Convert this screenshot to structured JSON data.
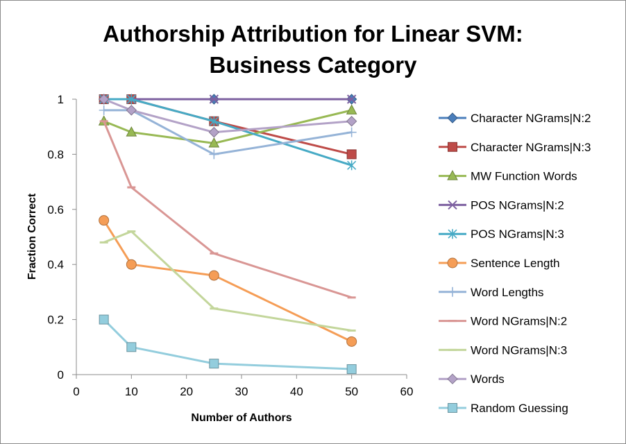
{
  "chart_data": {
    "type": "line",
    "title": "Authorship Attribution for Linear SVM:",
    "subtitle": "Business Category",
    "xlabel": "Number of Authors",
    "ylabel": "Fraction Correct",
    "xlim": [
      0,
      60
    ],
    "ylim": [
      0,
      1
    ],
    "x_ticks": [
      "0",
      "10",
      "20",
      "30",
      "40",
      "50",
      "60"
    ],
    "y_ticks": [
      "0",
      "0.2",
      "0.4",
      "0.6",
      "0.8",
      "1"
    ],
    "x": [
      5,
      10,
      25,
      50
    ],
    "grid": false,
    "legend_position": "right",
    "series": [
      {
        "name": "Character NGrams|N:2",
        "values": [
          1.0,
          1.0,
          1.0,
          1.0
        ],
        "color": "#4a7ebb",
        "marker": "diamond"
      },
      {
        "name": "Character NGrams|N:3",
        "values": [
          1.0,
          1.0,
          0.92,
          0.8
        ],
        "color": "#be4b48",
        "marker": "square"
      },
      {
        "name": "MW Function Words",
        "values": [
          0.92,
          0.88,
          0.84,
          0.96
        ],
        "color": "#98b954",
        "marker": "triangle"
      },
      {
        "name": "POS NGrams|N:2",
        "values": [
          1.0,
          1.0,
          1.0,
          1.0
        ],
        "color": "#7d60a0",
        "marker": "x"
      },
      {
        "name": "POS NGrams|N:3",
        "values": [
          1.0,
          1.0,
          0.92,
          0.76
        ],
        "color": "#46aac5",
        "marker": "star"
      },
      {
        "name": "Sentence Length",
        "values": [
          0.56,
          0.4,
          0.36,
          0.12
        ],
        "color": "#f59d56",
        "marker": "circle"
      },
      {
        "name": "Word Lengths",
        "values": [
          0.96,
          0.96,
          0.8,
          0.88
        ],
        "color": "#95b3d7",
        "marker": "plus"
      },
      {
        "name": "Word NGrams|N:2",
        "values": [
          0.92,
          0.68,
          0.44,
          0.28
        ],
        "color": "#d99694",
        "marker": "dash"
      },
      {
        "name": "Word NGrams|N:3",
        "values": [
          0.48,
          0.52,
          0.24,
          0.16
        ],
        "color": "#c3d69b",
        "marker": "dash"
      },
      {
        "name": "Words",
        "values": [
          1.0,
          0.96,
          0.88,
          0.92
        ],
        "color": "#b3a2c7",
        "marker": "diamond"
      },
      {
        "name": "Random Guessing",
        "values": [
          0.2,
          0.1,
          0.04,
          0.02
        ],
        "color": "#93cddd",
        "marker": "square"
      }
    ]
  }
}
